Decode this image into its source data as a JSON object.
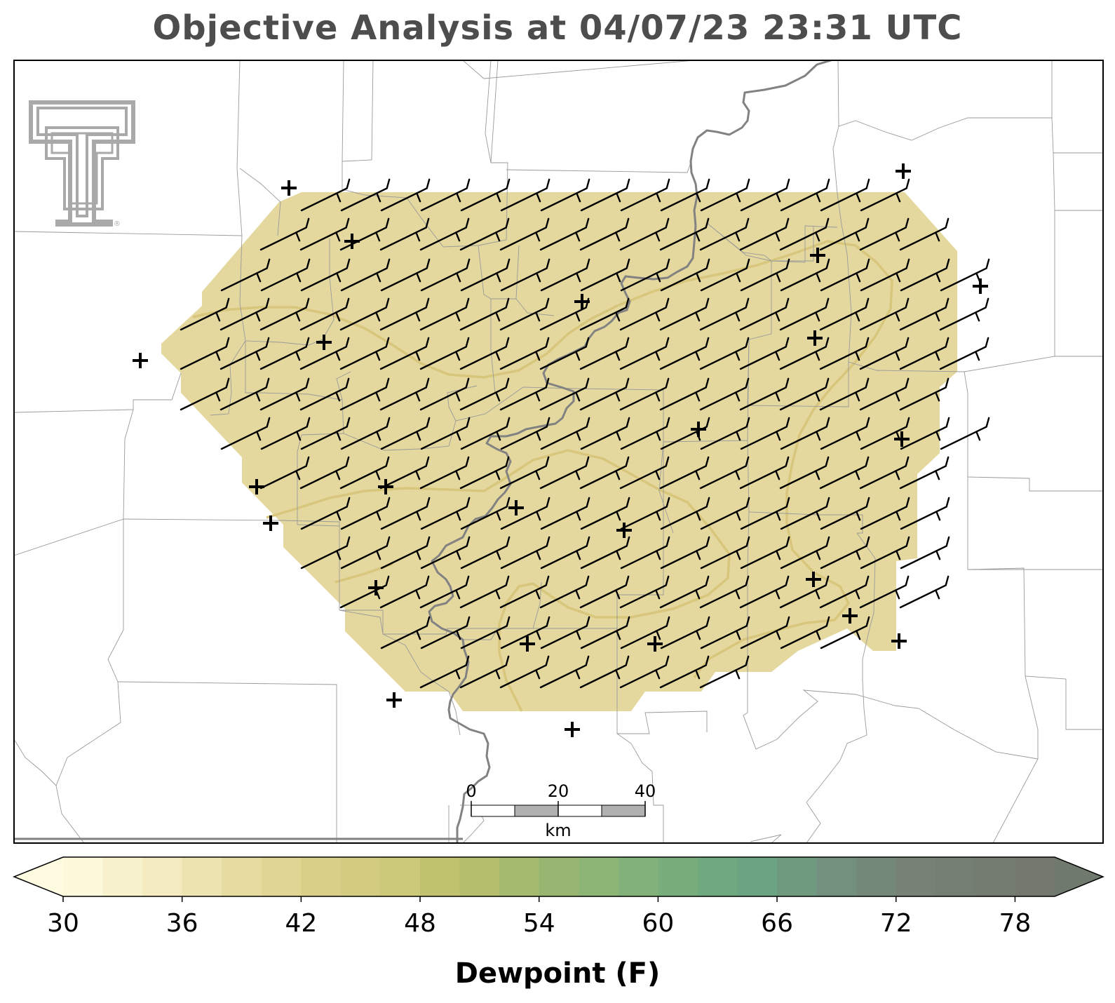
{
  "title": "Objective Analysis at 04/07/23 23:31 UTC",
  "colorbar": {
    "label": "Dewpoint (F)",
    "ticks": [
      "30",
      "36",
      "42",
      "48",
      "54",
      "60",
      "66",
      "72",
      "78"
    ],
    "min": 30,
    "max": 80,
    "step": 2,
    "colors": [
      "#fdf9db",
      "#f8f2cc",
      "#f3ebbf",
      "#ede3b0",
      "#e6dba1",
      "#e0d593",
      "#d9cf88",
      "#d2cb80",
      "#cbc878",
      "#c0c26e",
      "#b4be6c",
      "#a6ba6e",
      "#98b672",
      "#8db575",
      "#82b279",
      "#78ad7c",
      "#6ea97f",
      "#6aa482",
      "#6f9a80",
      "#72907d",
      "#738878",
      "#758274",
      "#757e72",
      "#747b70",
      "#73796f"
    ]
  },
  "field": {
    "fill_color": "#e4d89e",
    "contour_color": "#d8c67c"
  },
  "scale_bar": {
    "labels": [
      "0",
      "20",
      "40"
    ],
    "unit": "km"
  },
  "logo": {
    "name": "texas-tech-double-t-logo"
  }
}
